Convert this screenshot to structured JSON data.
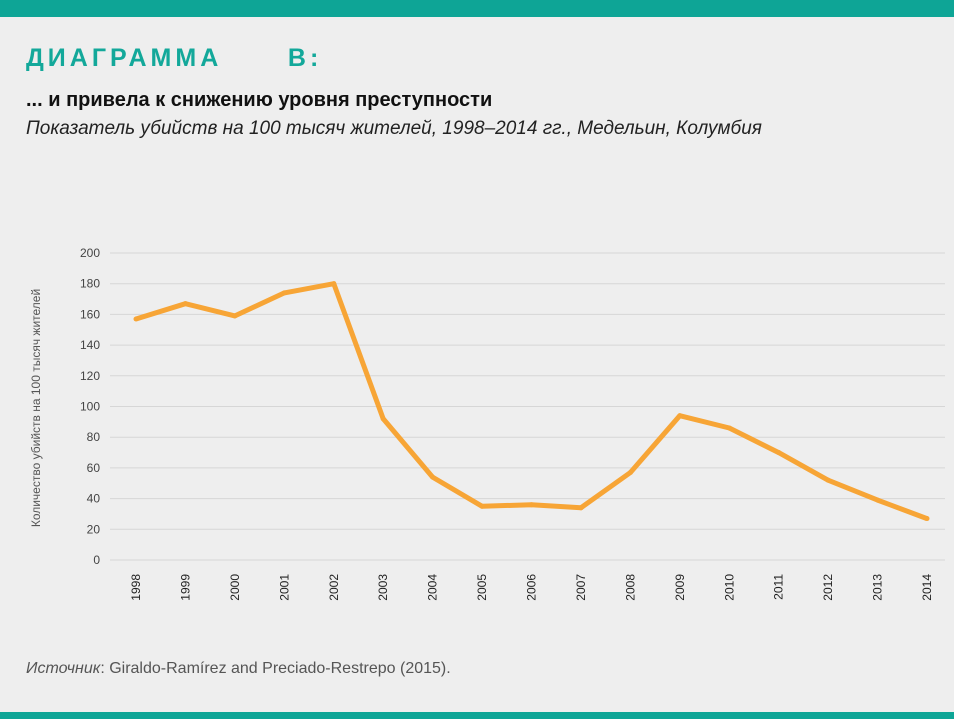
{
  "header": {
    "label": "ДИАГРАММА      B:",
    "title": "... и привела к снижению уровня преступности",
    "subtitle": "Показатель убийств на 100 тысяч жителей, 1998–2014 гг., Медельин, Колумбия"
  },
  "footer": {
    "source_label": "Источник",
    "source_text": ": Giraldo-Ramírez and Preciado-Restrepo (2015)."
  },
  "colors": {
    "accent_bar": "#0ea596",
    "heading": "#13a89a",
    "line": "#f7a536",
    "grid": "#d6d6d6",
    "background": "#eeeeee"
  },
  "chart_data": {
    "type": "line",
    "title": "",
    "xlabel": "",
    "ylabel": "Количество убийств на 100 тысяч жителей",
    "ylim": [
      0,
      200
    ],
    "yticks": [
      0,
      20,
      40,
      60,
      80,
      100,
      120,
      140,
      160,
      180,
      200
    ],
    "grid": true,
    "categories": [
      "1998",
      "1999",
      "2000",
      "2001",
      "2002",
      "2003",
      "2004",
      "2005",
      "2006",
      "2007",
      "2008",
      "2009",
      "2010",
      "2011",
      "2012",
      "2013",
      "2014"
    ],
    "series": [
      {
        "values": [
          157,
          167,
          159,
          174,
          180,
          92,
          54,
          35,
          36,
          34,
          57,
          94,
          86,
          70,
          52,
          39,
          27
        ]
      }
    ]
  }
}
